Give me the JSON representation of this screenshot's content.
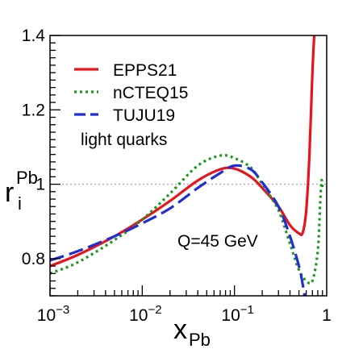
{
  "chart_data": {
    "type": "line",
    "x_scale": "log",
    "xlim": [
      0.001,
      1
    ],
    "ylim": [
      0.7,
      1.4
    ],
    "x_ticks": [
      {
        "value": 0.001,
        "base": "10",
        "exp": "−3"
      },
      {
        "value": 0.01,
        "base": "10",
        "exp": "−2"
      },
      {
        "value": 0.1,
        "base": "10",
        "exp": "−1"
      },
      {
        "value": 1,
        "base": "1",
        "exp": ""
      }
    ],
    "y_ticks": [
      {
        "value": 0.8,
        "label": "0.8"
      },
      {
        "value": 1.0,
        "label": "1"
      },
      {
        "value": 1.2,
        "label": "1.2"
      },
      {
        "value": 1.4,
        "label": "1.4"
      }
    ],
    "ylabel": {
      "base": "r",
      "sub": "i",
      "sup": "Pb"
    },
    "xlabel": {
      "base": "x",
      "sub": "Pb"
    },
    "reference_line": {
      "y": 1.0,
      "style": "dotted",
      "color": "#aaaaaa"
    },
    "legend_position": "top-left",
    "annotations": {
      "group_label": "light quarks",
      "scale_label": "Q=45 GeV"
    },
    "series": [
      {
        "name": "EPPS21",
        "color": "#e8141c",
        "dash": "solid",
        "points": [
          [
            0.001,
            0.78
          ],
          [
            0.002,
            0.81
          ],
          [
            0.005,
            0.86
          ],
          [
            0.01,
            0.905
          ],
          [
            0.02,
            0.955
          ],
          [
            0.04,
            1.01
          ],
          [
            0.07,
            1.04
          ],
          [
            0.1,
            1.042
          ],
          [
            0.15,
            1.02
          ],
          [
            0.2,
            0.99
          ],
          [
            0.3,
            0.94
          ],
          [
            0.4,
            0.89
          ],
          [
            0.5,
            0.868
          ],
          [
            0.55,
            0.87
          ],
          [
            0.6,
            0.93
          ],
          [
            0.65,
            1.08
          ],
          [
            0.7,
            1.3
          ],
          [
            0.75,
            1.45
          ]
        ]
      },
      {
        "name": "nCTEQ15",
        "color": "#1a9a1a",
        "dash": "dotted",
        "points": [
          [
            0.001,
            0.76
          ],
          [
            0.002,
            0.79
          ],
          [
            0.005,
            0.85
          ],
          [
            0.01,
            0.905
          ],
          [
            0.02,
            0.975
          ],
          [
            0.04,
            1.05
          ],
          [
            0.07,
            1.077
          ],
          [
            0.1,
            1.07
          ],
          [
            0.15,
            1.045
          ],
          [
            0.2,
            1.0
          ],
          [
            0.3,
            0.93
          ],
          [
            0.4,
            0.84
          ],
          [
            0.5,
            0.77
          ],
          [
            0.6,
            0.74
          ],
          [
            0.7,
            0.74
          ],
          [
            0.8,
            0.82
          ],
          [
            0.85,
            0.95
          ],
          [
            0.88,
            1.01
          ],
          [
            0.9,
            0.99
          ]
        ]
      },
      {
        "name": "TUJU19",
        "color": "#1f2fd6",
        "dash": "dashed",
        "points": [
          [
            0.001,
            0.795
          ],
          [
            0.002,
            0.82
          ],
          [
            0.005,
            0.86
          ],
          [
            0.01,
            0.895
          ],
          [
            0.02,
            0.935
          ],
          [
            0.04,
            0.99
          ],
          [
            0.07,
            1.03
          ],
          [
            0.1,
            1.05
          ],
          [
            0.15,
            1.04
          ],
          [
            0.2,
            1.005
          ],
          [
            0.3,
            0.94
          ],
          [
            0.4,
            0.86
          ],
          [
            0.5,
            0.78
          ],
          [
            0.55,
            0.73
          ],
          [
            0.6,
            0.67
          ]
        ]
      }
    ]
  }
}
